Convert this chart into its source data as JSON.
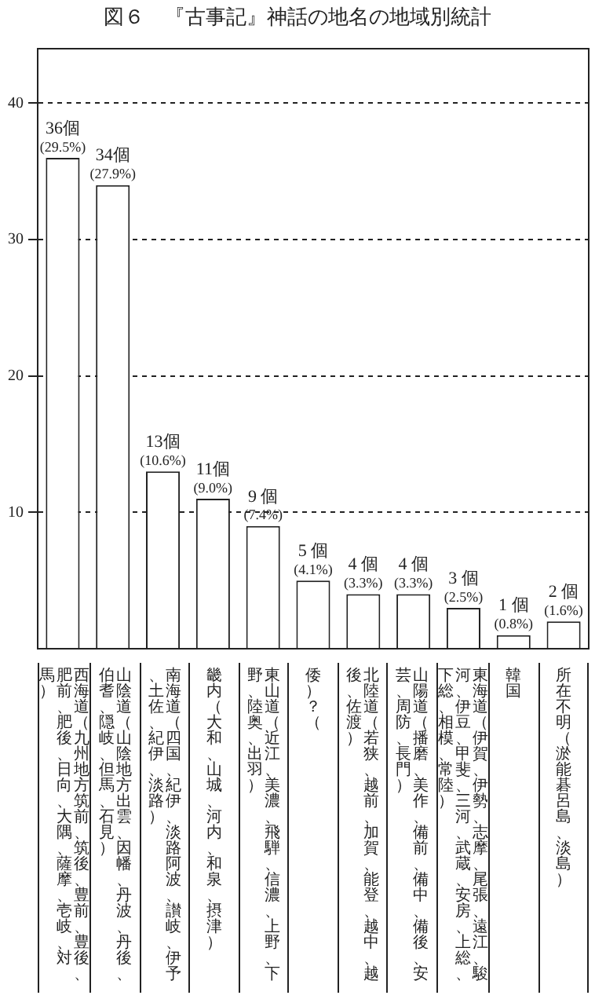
{
  "chart_data": {
    "type": "bar",
    "title": "図６　『古事記』神話の地名の地域別統計",
    "categories": [
      "西海道（九州地方筑前、筑後、豊前、豊後、肥前、肥後、日向、大隅、薩摩、壱岐、対馬）",
      "山陰道（山陰地方出雲、因幡、丹波、丹後、伯耆、隠岐、但馬、石見）",
      "南海道（四国、紀伊、淡路阿波、讃岐、伊予、土佐、紀伊、淡路）",
      "畿内（大和、山城、河内、和泉、摂津）",
      "東山道（近江、美濃、飛騨、信濃、上野、下野、陸奥、出羽）",
      "倭（？）",
      "北陸道（若狭、越前、加賀、能登、越中、越後、佐渡）",
      "山陽道（播磨、美作、備前、備中、備後、安芸、周防、長門）",
      "東海道（伊賀、伊勢、志摩、尾張、遠江、駿河、伊豆、甲斐、三河、武蔵、安房、上総、下総、相模、常陸）",
      "韓国",
      "所在不明（淤能碁呂島、淡島）"
    ],
    "values": [
      36,
      34,
      13,
      11,
      9,
      5,
      4,
      4,
      3,
      1,
      2
    ],
    "value_labels": [
      "36個\n(29.5%)",
      "34個\n(27.9%)",
      "13個\n(10.6%)",
      "11個\n(9.0%)",
      "9 個\n(7.4%)",
      "5 個\n(4.1%)",
      "4 個\n(3.3%)",
      "4 個\n(3.3%)",
      "3 個\n(2.5%)",
      "1 個\n(0.8%)",
      "2 個\n(1.6%)"
    ],
    "color": "#ffffff",
    "ylim": [
      0,
      44
    ],
    "yticks": [
      10,
      20,
      30,
      40
    ],
    "grid": "y"
  }
}
